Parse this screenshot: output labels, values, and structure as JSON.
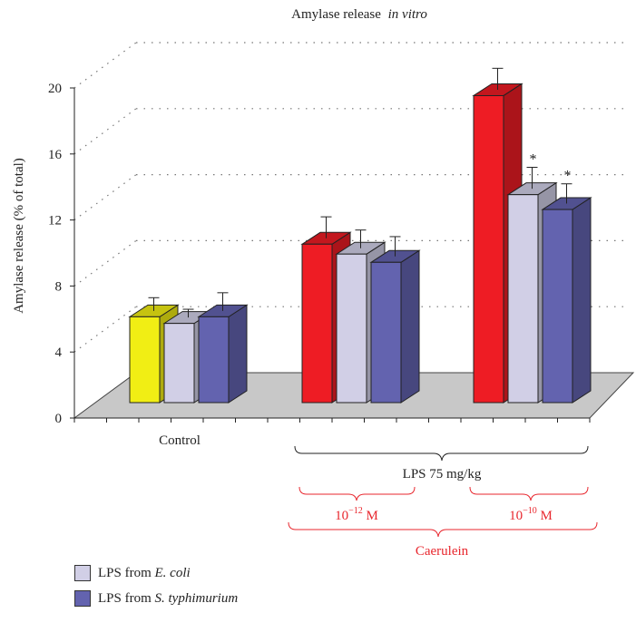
{
  "chart_data": {
    "type": "bar",
    "title": "Amylase release",
    "title_italic": "in vitro",
    "ylabel": "Amylase release (% of total)",
    "ylim": [
      0,
      20
    ],
    "yticks": [
      0,
      4,
      8,
      12,
      16,
      20
    ],
    "grid": true,
    "groups": [
      {
        "label": "Control",
        "bars": [
          {
            "value": 5.2,
            "error": 0.8,
            "color": "#f1ee14"
          },
          {
            "value": 4.8,
            "error": 0.5,
            "color": "#d1cfe6"
          },
          {
            "value": 5.2,
            "error": 1.1,
            "color": "#6363af"
          }
        ]
      },
      {
        "label": "",
        "bars": [
          {
            "value": 9.6,
            "error": 1.3,
            "color": "#ee1c24"
          },
          {
            "value": 9.0,
            "error": 1.1,
            "color": "#d1cfe6"
          },
          {
            "value": 8.5,
            "error": 1.2,
            "color": "#6363af"
          }
        ]
      },
      {
        "label": "",
        "bars": [
          {
            "value": 18.6,
            "error": 1.3,
            "color": "#ee1c24"
          },
          {
            "value": 12.6,
            "error": 1.3,
            "color": "#d1cfe6",
            "marker": "*"
          },
          {
            "value": 11.7,
            "error": 1.2,
            "color": "#6363af",
            "marker": "*"
          }
        ]
      }
    ],
    "annotations": {
      "lps_dose": "LPS 75 mg/kg",
      "conc_low_base": "10",
      "conc_low_exp": "−12",
      "conc_high_base": "10",
      "conc_high_exp": "−10",
      "conc_unit": " M",
      "caerulein": "Caerulein"
    },
    "legend": [
      {
        "prefix": "LPS from ",
        "italic": "E. coli",
        "color": "#d1cfe6"
      },
      {
        "prefix": "LPS from ",
        "italic": "S. typhimurium",
        "color": "#6363af"
      }
    ]
  },
  "colors": {
    "red_annotation": "#e8262d",
    "floor": "#c8c8c8"
  }
}
